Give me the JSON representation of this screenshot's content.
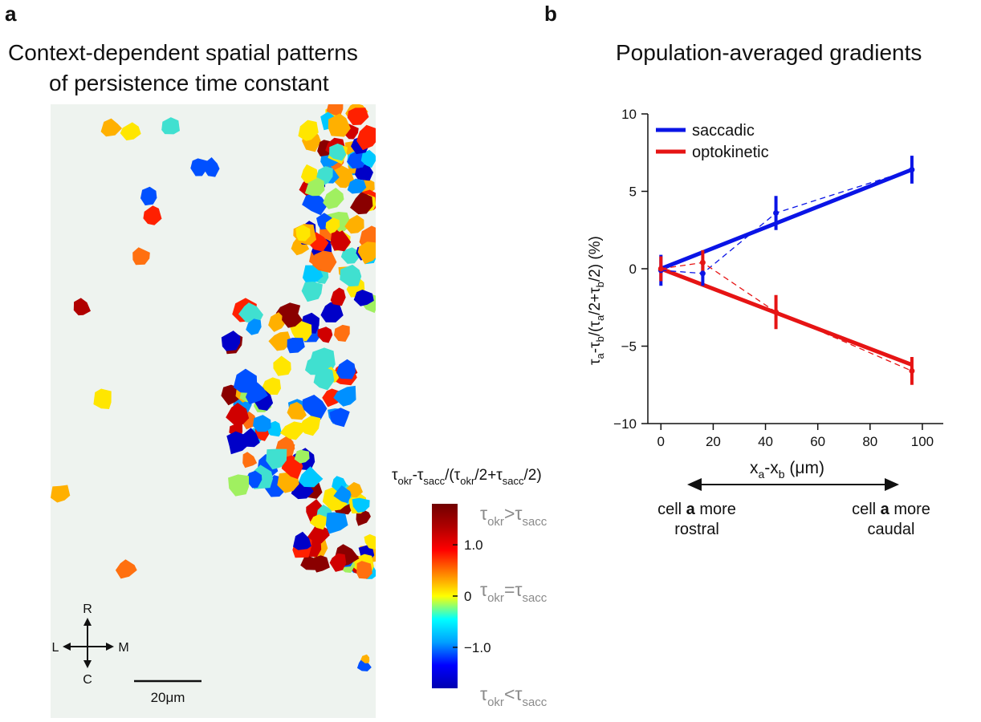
{
  "panel_a": {
    "letter": "a",
    "title_line1": "Context-dependent spatial patterns",
    "title_line2": "of persistence time constant",
    "compass": {
      "up": "R",
      "down": "C",
      "left": "L",
      "right": "M"
    },
    "scale_bar_label": "20μm",
    "background_color": "#eef3ef",
    "colorbar": {
      "title": "τokr-τsacc/(τokr/2+τsacc/2)",
      "ticks": [
        "1.0",
        "0",
        "−1.0"
      ],
      "tick_values": [
        1.0,
        0,
        -1.0
      ],
      "range": [
        -1.8,
        1.8
      ],
      "annotations": [
        "τokr>τsacc",
        "τokr=τsacc",
        "τokr<τsacc"
      ],
      "colormap": [
        "#0000b0",
        "#0000ff",
        "#00a0ff",
        "#00ffff",
        "#ffff00",
        "#ff8000",
        "#ff0000",
        "#b00000",
        "#700000"
      ]
    }
  },
  "panel_b": {
    "letter": "b",
    "title": "Population-averaged gradients",
    "arrow_left_line1": "cell a more",
    "arrow_left_line2": "rostral",
    "arrow_right_line1": "cell a more",
    "arrow_right_line2": "caudal",
    "colors": {
      "saccadic": "#0a14e6",
      "optokinetic": "#e61414"
    }
  },
  "chart_data": {
    "type": "line",
    "title": "Population-averaged gradients",
    "xlabel": "xa-xb (μm)",
    "ylabel": "τa-τb/(τa/2+τb/2) (%)",
    "xlim": [
      -5,
      108
    ],
    "ylim": [
      -10,
      10
    ],
    "xticks": [
      0,
      20,
      40,
      60,
      80,
      100
    ],
    "yticks": [
      -10,
      -5,
      0,
      5,
      10
    ],
    "legend": "top-left",
    "series": [
      {
        "name": "saccadic",
        "points": [
          {
            "x": 0,
            "y": -0.1,
            "err": 1.0
          },
          {
            "x": 16,
            "y": -0.3,
            "err": 0.8
          },
          {
            "x": 44,
            "y": 3.6,
            "err": 1.1
          },
          {
            "x": 96,
            "y": 6.4,
            "err": 0.9
          }
        ],
        "fit": [
          [
            0,
            0
          ],
          [
            96,
            6.4
          ]
        ]
      },
      {
        "name": "optokinetic",
        "points": [
          {
            "x": 0,
            "y": 0.0,
            "err": 0.8
          },
          {
            "x": 16,
            "y": 0.4,
            "err": 0.8
          },
          {
            "x": 44,
            "y": -2.8,
            "err": 1.1
          },
          {
            "x": 96,
            "y": -6.6,
            "err": 0.9
          }
        ],
        "fit": [
          [
            0,
            0
          ],
          [
            96,
            -6.2
          ]
        ]
      }
    ]
  }
}
